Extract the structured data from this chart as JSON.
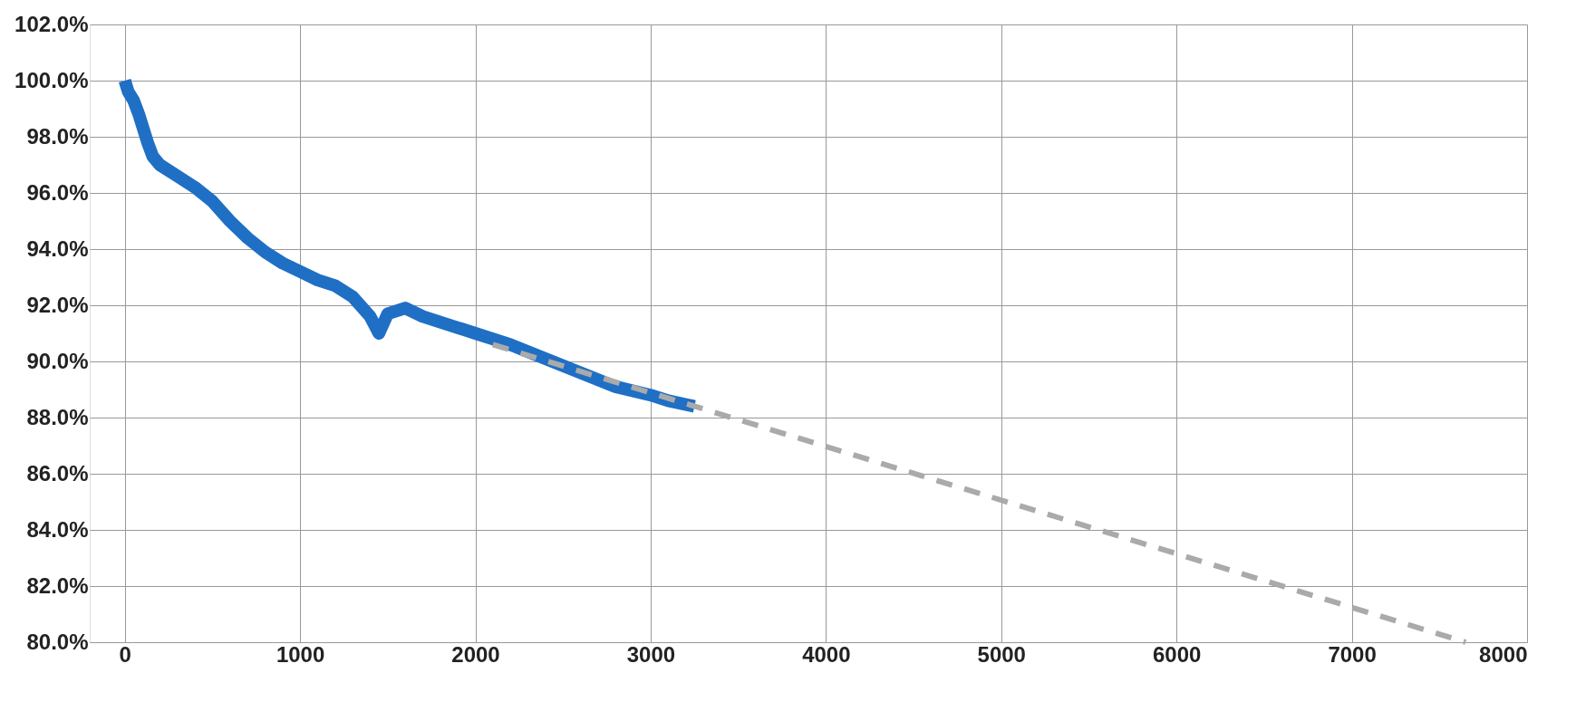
{
  "chart_data": {
    "type": "line",
    "xlim": [
      -200,
      8000
    ],
    "ylim": [
      80,
      102
    ],
    "xticks": [
      0,
      1000,
      2000,
      3000,
      4000,
      5000,
      6000,
      7000,
      8000
    ],
    "yticks": [
      {
        "value": 80,
        "label": "80.0%"
      },
      {
        "value": 82,
        "label": "82.0%"
      },
      {
        "value": 84,
        "label": "84.0%"
      },
      {
        "value": 86,
        "label": "86.0%"
      },
      {
        "value": 88,
        "label": "88.0%"
      },
      {
        "value": 90,
        "label": "90.0%"
      },
      {
        "value": 92,
        "label": "92.0%"
      },
      {
        "value": 94,
        "label": "94.0%"
      },
      {
        "value": 96,
        "label": "96.0%"
      },
      {
        "value": 98,
        "label": "98.0%"
      },
      {
        "value": 100,
        "label": "100.0%"
      },
      {
        "value": 102,
        "label": "102.0%"
      }
    ],
    "grid": true,
    "marker": "none",
    "series": [
      {
        "color": "#1f6fc5",
        "line_style": "solid",
        "x": [
          0,
          20,
          50,
          80,
          100,
          130,
          160,
          200,
          300,
          400,
          500,
          600,
          700,
          800,
          900,
          1000,
          1100,
          1200,
          1300,
          1400,
          1450,
          1500,
          1600,
          1700,
          1800,
          1900,
          2000,
          2200,
          2400,
          2600,
          2800,
          3000,
          3100,
          3250
        ],
        "values": [
          100.0,
          99.6,
          99.3,
          98.8,
          98.4,
          97.8,
          97.3,
          97.0,
          96.6,
          96.2,
          95.7,
          95.0,
          94.4,
          93.9,
          93.5,
          93.2,
          92.9,
          92.7,
          92.3,
          91.6,
          91.0,
          91.7,
          91.9,
          91.6,
          91.4,
          91.2,
          91.0,
          90.6,
          90.1,
          89.6,
          89.1,
          88.8,
          88.6,
          88.4
        ]
      },
      {
        "type": "line",
        "color": "#aaaaaa",
        "line_style": "dashed",
        "x": [
          2100,
          7650
        ],
        "values": [
          90.6,
          80.0
        ]
      }
    ]
  }
}
